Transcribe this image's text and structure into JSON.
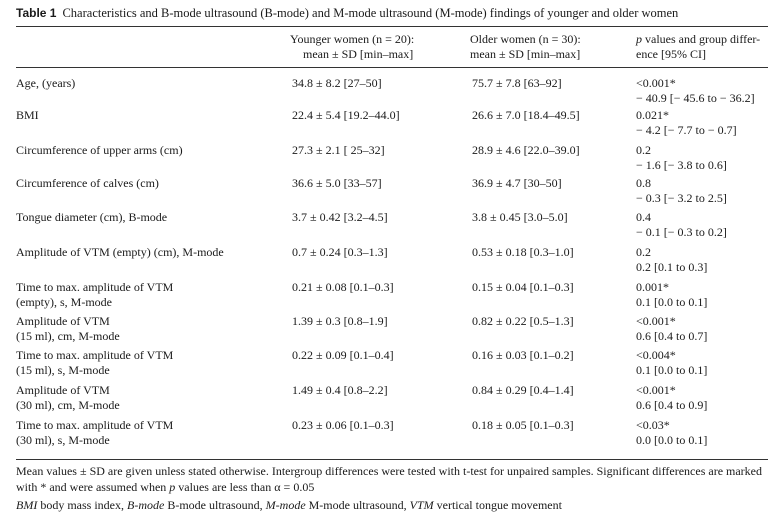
{
  "caption": {
    "label": "Table 1",
    "text": "Characteristics and B-mode ultrasound (B-mode) and M-mode ultrasound (M-mode) findings of younger and older women"
  },
  "header": {
    "younger_line1": "Younger women (n = 20):",
    "younger_line2": "mean ± SD [min–max]",
    "older_line1": "Older women (n = 30):",
    "older_line2": "mean ± SD [min–max]",
    "p_line1": "p values and group differ-",
    "p_line2": "ence [95% CI]"
  },
  "rows": [
    {
      "label": [
        "Age, (years)"
      ],
      "younger": "34.8 ± 8.2 [27–50]",
      "older": "75.7 ± 7.8 [63–92]",
      "p": [
        "<0.001*",
        "− 40.9 [− 45.6 to − 36.2]"
      ]
    },
    {
      "label": [
        "BMI"
      ],
      "younger": "22.4 ± 5.4 [19.2–44.0]",
      "older": "26.6 ± 7.0 [18.4–49.5]",
      "p": [
        "0.021*",
        "− 4.2 [− 7.7 to − 0.7]"
      ]
    },
    {
      "label": [
        "Circumference of upper arms (cm)"
      ],
      "younger": "27.3 ± 2.1 [ 25–32]",
      "older": "28.9 ± 4.6 [22.0–39.0]",
      "p": [
        "0.2",
        "− 1.6 [− 3.8 to 0.6]"
      ]
    },
    {
      "label": [
        "Circumference of calves (cm)"
      ],
      "younger": "36.6 ± 5.0 [33–57]",
      "older": "36.9 ± 4.7 [30–50]",
      "p": [
        "0.8",
        "− 0.3 [− 3.2 to 2.5]"
      ]
    },
    {
      "label": [
        "Tongue diameter (cm), B-mode"
      ],
      "younger": "3.7 ± 0.42 [3.2–4.5]",
      "older": "3.8 ± 0.45 [3.0–5.0]",
      "p": [
        "0.4",
        "− 0.1 [− 0.3 to 0.2]"
      ]
    },
    {
      "label": [
        "Amplitude of VTM (empty) (cm), M-mode"
      ],
      "younger": "0.7 ± 0.24 [0.3–1.3]",
      "older": "0.53 ± 0.18 [0.3–1.0]",
      "p": [
        "0.2",
        "0.2 [0.1 to 0.3]"
      ]
    },
    {
      "label": [
        "Time to max. amplitude of VTM",
        "(empty), s, M-mode"
      ],
      "younger": "0.21 ± 0.08 [0.1–0.3]",
      "older": "0.15 ± 0.04 [0.1–0.3]",
      "p": [
        "0.001*",
        "0.1 [0.0 to 0.1]"
      ]
    },
    {
      "label": [
        "Amplitude of VTM",
        "(15 ml), cm, M-mode"
      ],
      "younger": "1.39 ± 0.3 [0.8–1.9]",
      "older": "0.82 ± 0.22 [0.5–1.3]",
      "p": [
        "<0.001*",
        "0.6 [0.4 to 0.7]"
      ]
    },
    {
      "label": [
        "Time to max. amplitude of VTM",
        "(15 ml), s, M-mode"
      ],
      "younger": "0.22 ± 0.09 [0.1–0.4]",
      "older": "0.16 ± 0.03 [0.1–0.2]",
      "p": [
        "<0.004*",
        "0.1 [0.0 to 0.1]"
      ]
    },
    {
      "label": [
        "Amplitude of VTM",
        "(30 ml), cm, M-mode"
      ],
      "younger": "1.49 ± 0.4 [0.8–2.2]",
      "older": "0.84 ± 0.29 [0.4–1.4]",
      "p": [
        "<0.001*",
        "0.6 [0.4 to 0.9]"
      ]
    },
    {
      "label": [
        "Time to max. amplitude of VTM",
        "(30 ml), s, M-mode"
      ],
      "younger": "0.23 ± 0.06 [0.1–0.3]",
      "older": "0.18 ± 0.05 [0.1–0.3]",
      "p": [
        "<0.03*",
        "0.0 [0.0 to 0.1]"
      ]
    }
  ],
  "footnote1": "Mean values ± SD are given unless stated otherwise. Intergroup differences were tested with t-test for unpaired samples. Significant differences are marked with * and were assumed when p values are less than α = 0.05",
  "footnote2": "BMI body mass index, B-mode B-mode ultrasound, M-mode M-mode ultrasound, VTM vertical tongue movement"
}
